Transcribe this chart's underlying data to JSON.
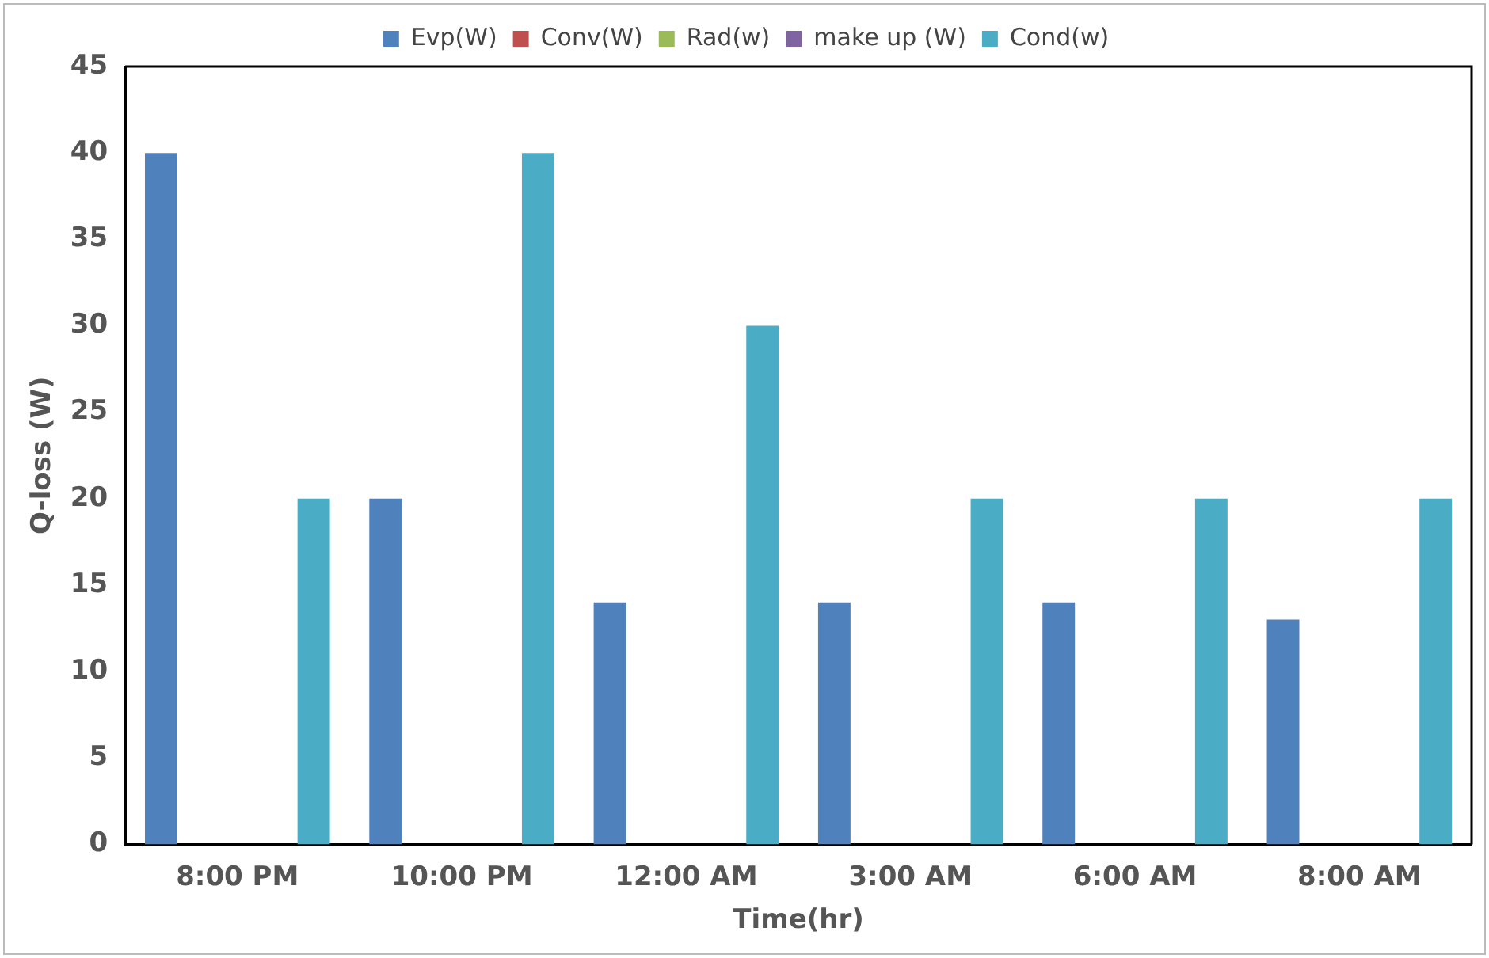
{
  "chart_data": {
    "type": "bar",
    "xlabel": "Time(hr)",
    "ylabel": "Q-loss (W)",
    "categories": [
      "8:00 PM",
      "10:00 PM",
      "12:00 AM",
      "3:00 AM",
      "6:00 AM",
      "8:00 AM"
    ],
    "series": [
      {
        "name": "Evp(W)",
        "color": "#4f81bd",
        "values": [
          40,
          20,
          14,
          14,
          14,
          13
        ]
      },
      {
        "name": "Conv(W)",
        "color": "#c0504d",
        "values": [
          0,
          0,
          0,
          0,
          0,
          0
        ]
      },
      {
        "name": "Rad(w)",
        "color": "#9bbb59",
        "values": [
          0,
          0,
          0,
          0,
          0,
          0
        ]
      },
      {
        "name": "make up (W)",
        "color": "#8064a2",
        "values": [
          0,
          0,
          0,
          0,
          0,
          0
        ]
      },
      {
        "name": "Cond(w)",
        "color": "#4bacc6",
        "values": [
          20,
          40,
          30,
          20,
          20,
          20
        ]
      }
    ],
    "ylim": [
      0,
      45
    ],
    "yticks": [
      0,
      5,
      10,
      15,
      20,
      25,
      30,
      35,
      40,
      45
    ],
    "grid": false,
    "legend": "top"
  }
}
